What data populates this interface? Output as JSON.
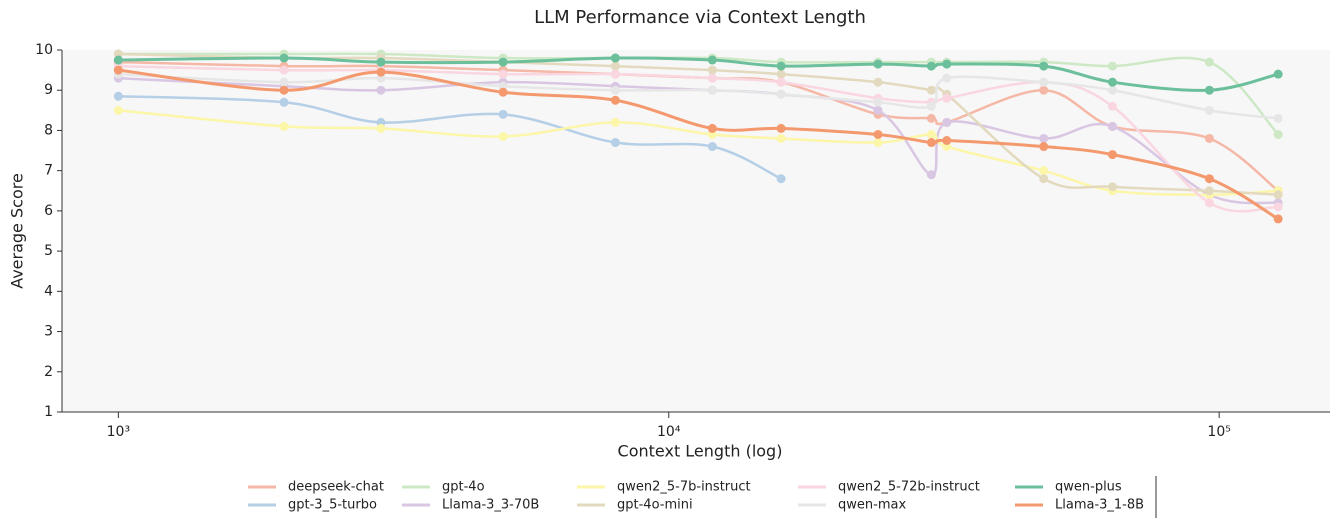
{
  "chart_data": {
    "type": "line",
    "title": "LLM Performance via Context Length",
    "x_label": "Context Length (log)",
    "y_label": "Average Score",
    "x_scale": "log",
    "xlim": [
      790,
      159000
    ],
    "xticks": [
      {
        "value": 1000,
        "label": "10³"
      },
      {
        "value": 10000,
        "label": "10⁴"
      },
      {
        "value": 100000,
        "label": "10⁵"
      }
    ],
    "ylim": [
      1,
      10
    ],
    "yticks": [
      1,
      2,
      3,
      4,
      5,
      6,
      7,
      8,
      9,
      10
    ],
    "legend": "bottom",
    "x": [
      1000,
      2000,
      3000,
      5000,
      8000,
      12000,
      16000,
      24000,
      30000,
      32000,
      48000,
      64000,
      96000,
      128000
    ],
    "series": [
      {
        "name": "deepseek-chat",
        "color": "#f5b8a6",
        "values": [
          9.7,
          9.6,
          9.6,
          9.5,
          9.4,
          9.3,
          9.2,
          8.4,
          8.3,
          8.2,
          9.0,
          8.1,
          7.8,
          6.5
        ]
      },
      {
        "name": "gpt-3_5-turbo",
        "color": "#b4cfe6",
        "values": [
          8.85,
          8.7,
          8.2,
          8.4,
          7.7,
          7.6,
          6.8,
          null,
          null,
          null,
          null,
          null,
          null,
          null
        ]
      },
      {
        "name": "gpt-4o",
        "color": "#cde8c5",
        "values": [
          9.9,
          9.9,
          9.9,
          9.8,
          9.8,
          9.8,
          9.7,
          9.7,
          9.7,
          9.7,
          9.7,
          9.6,
          9.7,
          7.9
        ]
      },
      {
        "name": "Llama-3_3-70B",
        "color": "#d9c6e3",
        "values": [
          9.3,
          9.1,
          9.0,
          9.2,
          9.1,
          9.0,
          8.9,
          8.5,
          6.9,
          8.2,
          7.8,
          8.1,
          6.4,
          6.2
        ]
      },
      {
        "name": "qwen2_5-7b-instruct",
        "color": "#fbf6a8",
        "values": [
          8.5,
          8.1,
          8.05,
          7.85,
          8.2,
          7.9,
          7.8,
          7.7,
          7.9,
          7.6,
          7.0,
          6.5,
          6.4,
          6.5
        ]
      },
      {
        "name": "gpt-4o-mini",
        "color": "#e2d9be",
        "values": [
          9.9,
          9.8,
          9.8,
          9.7,
          9.6,
          9.5,
          9.4,
          9.2,
          9.0,
          8.9,
          6.8,
          6.6,
          6.5,
          6.4
        ]
      },
      {
        "name": "qwen2_5-72b-instruct",
        "color": "#f9d6e0",
        "values": [
          9.6,
          9.5,
          9.5,
          9.4,
          9.4,
          9.3,
          9.2,
          8.8,
          8.7,
          8.8,
          9.2,
          8.6,
          6.2,
          6.1
        ]
      },
      {
        "name": "qwen-max",
        "color": "#e6e6e6",
        "values": [
          9.4,
          9.2,
          9.3,
          9.1,
          9.0,
          9.0,
          8.9,
          8.7,
          8.6,
          9.3,
          9.2,
          9.0,
          8.5,
          8.3
        ]
      },
      {
        "name": "qwen-plus",
        "color": "#6cbf9b",
        "values": [
          9.75,
          9.8,
          9.7,
          9.7,
          9.8,
          9.75,
          9.6,
          9.65,
          9.6,
          9.65,
          9.6,
          9.2,
          9.0,
          9.4
        ]
      },
      {
        "name": "Llama-3_1-8B",
        "color": "#f4996e",
        "values": [
          9.5,
          9.0,
          9.45,
          8.95,
          8.75,
          8.05,
          8.05,
          7.9,
          7.7,
          7.75,
          7.6,
          7.4,
          6.8,
          5.8
        ]
      }
    ]
  }
}
